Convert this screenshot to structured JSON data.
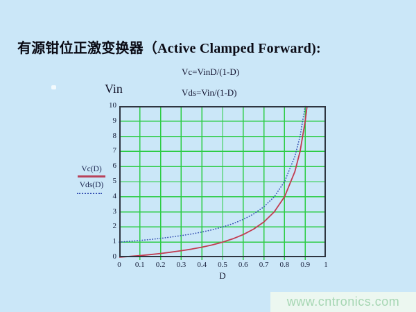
{
  "title": "有源钳位正激变换器（Active Clamped Forward):",
  "formulas": {
    "vc": "Vc=VinD/(1-D)",
    "vds": "Vds=Vin/(1-D)"
  },
  "watermark": {
    "text": "www.cntronics.com"
  },
  "colors": {
    "page_bg": "#cbe7f8",
    "grid": "#2bcc44",
    "frame": "#2e3540",
    "vc_line": "#c23b50",
    "vds_line": "#3a55b4",
    "watermark_bg": "#ecf7f0",
    "watermark_text": "#a5d6b2"
  },
  "chart_data": {
    "type": "line",
    "title": "",
    "xlabel": "D",
    "ylabel": "Vin",
    "xlim": [
      0,
      1
    ],
    "ylim": [
      0,
      10
    ],
    "grid": true,
    "legend_position": "left",
    "x_tick_labels": [
      "0",
      "0.1",
      "0.2",
      "0.3",
      "0.4",
      "0.5",
      "0.6",
      "0.7",
      "0.8",
      "0.9",
      "1"
    ],
    "y_tick_labels": [
      "0",
      "1",
      "2",
      "3",
      "4",
      "5",
      "6",
      "7",
      "8",
      "9",
      "10"
    ],
    "series": [
      {
        "name": "Vc(D)",
        "formula": "Vc=VinD/(1-D)",
        "style": "solid",
        "color": "#c23b50",
        "x": [
          0,
          0.05,
          0.1,
          0.15,
          0.2,
          0.25,
          0.3,
          0.35,
          0.4,
          0.45,
          0.5,
          0.55,
          0.6,
          0.65,
          0.7,
          0.75,
          0.8,
          0.85,
          0.875,
          0.9,
          0.909
        ],
        "y": [
          0,
          0.053,
          0.111,
          0.176,
          0.25,
          0.333,
          0.429,
          0.538,
          0.667,
          0.818,
          1,
          1.222,
          1.5,
          1.857,
          2.333,
          3,
          4,
          5.667,
          7,
          9,
          10
        ]
      },
      {
        "name": "Vds(D)",
        "formula": "Vds=Vin/(1-D)",
        "style": "dotted",
        "color": "#3a55b4",
        "x": [
          0,
          0.05,
          0.1,
          0.15,
          0.2,
          0.25,
          0.3,
          0.35,
          0.4,
          0.45,
          0.5,
          0.55,
          0.6,
          0.65,
          0.7,
          0.75,
          0.8,
          0.85,
          0.875,
          0.9
        ],
        "y": [
          1,
          1.053,
          1.111,
          1.176,
          1.25,
          1.333,
          1.429,
          1.538,
          1.667,
          1.818,
          2,
          2.222,
          2.5,
          2.857,
          3.333,
          4,
          5,
          6.667,
          8,
          10
        ]
      }
    ]
  }
}
